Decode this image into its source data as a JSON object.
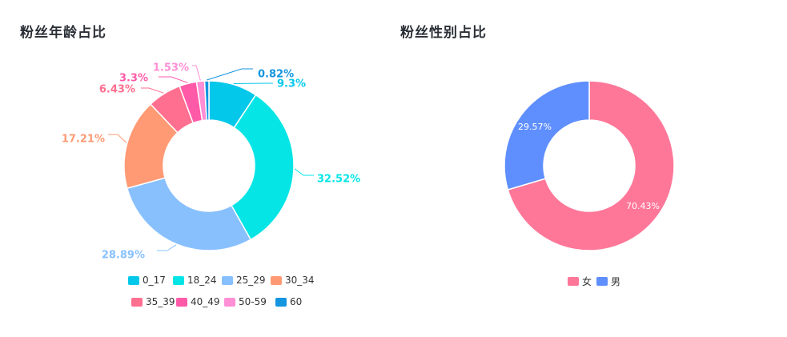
{
  "age_panel": {
    "title": "粉丝年龄占比"
  },
  "gender_panel": {
    "title": "粉丝性别占比"
  },
  "chart_data": [
    {
      "type": "pie",
      "title": "粉丝年龄占比",
      "donut": true,
      "label_position": "outside",
      "categories": [
        "0_17",
        "18_24",
        "25_29",
        "30_34",
        "35_39",
        "40_49",
        "50-59",
        "60"
      ],
      "values": [
        9.3,
        32.52,
        28.89,
        17.21,
        6.43,
        3.3,
        1.53,
        0.82
      ],
      "labels": [
        "9.3%",
        "32.52%",
        "28.89%",
        "17.21%",
        "6.43%",
        "3.3%",
        "1.53%",
        "0.82%"
      ],
      "colors": [
        "#04c8ea",
        "#06e5e6",
        "#88c0fe",
        "#ff9a74",
        "#ff6f8f",
        "#ff5aa8",
        "#ff8fd4",
        "#1495e0"
      ],
      "legend_position": "bottom"
    },
    {
      "type": "pie",
      "title": "粉丝性别占比",
      "donut": true,
      "label_position": "inside",
      "categories": [
        "女",
        "男"
      ],
      "values": [
        70.43,
        29.57
      ],
      "labels": [
        "70.43%",
        "29.57%"
      ],
      "colors": [
        "#fe7799",
        "#5f8ffe"
      ],
      "legend_position": "bottom"
    }
  ]
}
